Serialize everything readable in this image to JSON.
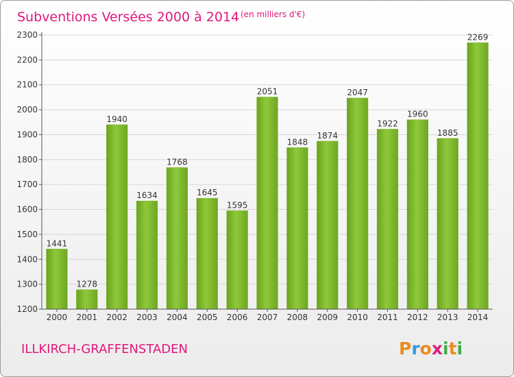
{
  "chart_data": {
    "type": "bar",
    "title": "Subventions Versées 2000 à 2014",
    "subtitle": "(en milliers d'€)",
    "categories": [
      "2000",
      "2001",
      "2002",
      "2003",
      "2004",
      "2005",
      "2006",
      "2007",
      "2008",
      "2009",
      "2010",
      "2011",
      "2012",
      "2013",
      "2014"
    ],
    "values": [
      1441,
      1278,
      1940,
      1634,
      1768,
      1645,
      1595,
      2051,
      1848,
      1874,
      2047,
      1922,
      1960,
      1885,
      2269
    ],
    "ylim": [
      1200,
      2300
    ],
    "yticks": [
      "1200",
      "1300",
      "1400",
      "1500",
      "1600",
      "1700",
      "1800",
      "1900",
      "2000",
      "2100",
      "2200",
      "2300"
    ],
    "grid": true,
    "bar_color": "#7ab22a",
    "legend": "none"
  },
  "footer": {
    "commune": "ILLKIRCH-GRAFFENSTADEN",
    "logo_letters": [
      "P",
      "r",
      "o",
      "x",
      "i",
      "t",
      "i"
    ],
    "logo_colors": [
      "#e98c1f",
      "#2f9be0",
      "#e98c1f",
      "#d8237a",
      "#3fae49",
      "#e98c1f",
      "#3fae49"
    ]
  }
}
